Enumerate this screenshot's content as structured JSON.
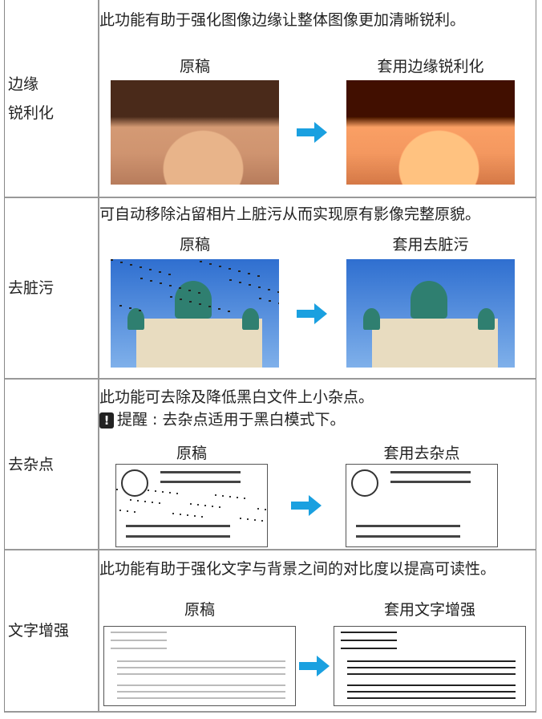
{
  "rows": [
    {
      "label": [
        "边缘",
        "锐利化"
      ],
      "description": "此功能有助于强化图像边缘让整体图像更加清晰锐利。",
      "before": "原稿",
      "after": "套用边缘锐利化"
    },
    {
      "label": [
        "去脏污"
      ],
      "description": "可自动移除沾留相片上脏污从而实现原有影像完整原貌。",
      "before": "原稿",
      "after": "套用去脏污"
    },
    {
      "label": [
        "去杂点"
      ],
      "description": "此功能可去除及降低黑白文件上小杂点。",
      "note": {
        "icon": "!",
        "text": "提醒 : 去杂点适用于黑白模式下。"
      },
      "before": "原稿",
      "after": "套用去杂点"
    },
    {
      "label": [
        "文字增强"
      ],
      "description": "此功能有助于强化文字与背景之间的对比度以提高可读性。",
      "before": "原稿",
      "after": "套用文字增强"
    }
  ]
}
